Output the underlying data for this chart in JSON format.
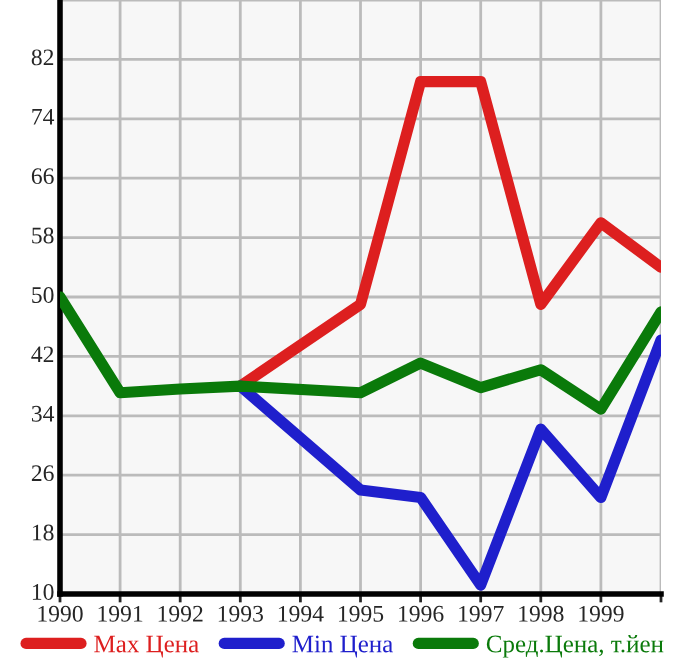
{
  "chart_data": {
    "type": "line",
    "xlim": [
      1990,
      2000
    ],
    "xticks": [
      1990,
      1991,
      1992,
      1993,
      1994,
      1995,
      1996,
      1997,
      1998,
      1999,
      {
        "value": 2000,
        "label": null
      }
    ],
    "ylim": [
      10,
      90
    ],
    "yticks": [
      10,
      18,
      26,
      34,
      42,
      50,
      58,
      66,
      74,
      82,
      {
        "value": 90,
        "label": null
      }
    ],
    "grid": true,
    "legend": "bottom",
    "marker": "none",
    "line_style": "solid",
    "series": [
      {
        "name": "Max Цена",
        "color": "#dd1f1f",
        "x": [
          1993,
          1995,
          1996,
          1997,
          1998,
          1999,
          2000
        ],
        "values": [
          38,
          49,
          79,
          79,
          49,
          60,
          54
        ]
      },
      {
        "name": "Min Цена",
        "color": "#1f1fcc",
        "x": [
          1993,
          1995,
          1996,
          1997,
          1998,
          1999,
          2000
        ],
        "values": [
          38,
          24,
          23,
          11.2,
          32.2,
          23,
          44.2
        ]
      },
      {
        "name": "Сред.Цена, т.йен",
        "color": "#0a7a0a",
        "x": [
          1990,
          1991,
          1992,
          1993,
          1995,
          1996,
          1997,
          1998,
          1999,
          2000
        ],
        "values": [
          50,
          37.1,
          37.6,
          38,
          37.1,
          41.1,
          37.8,
          40.2,
          34.9,
          48
        ]
      }
    ]
  }
}
